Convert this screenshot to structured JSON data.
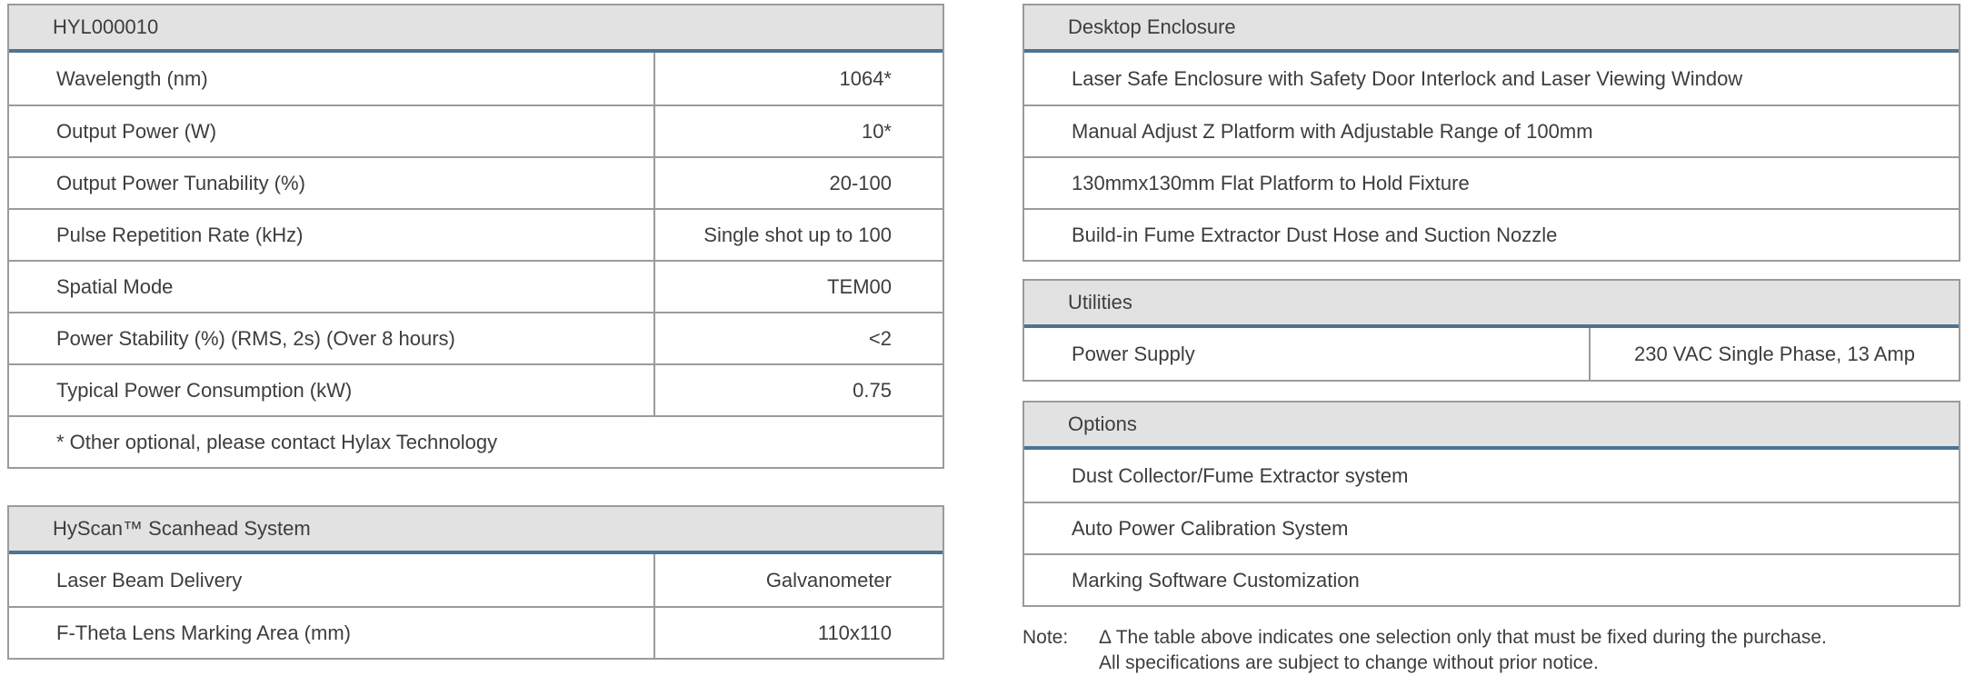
{
  "colors": {
    "accent_blue": "#4d7492",
    "header_bg": "#e2e2e2",
    "border_gray": "#9b9b9b",
    "text": "#3d3d3d"
  },
  "left": {
    "model": {
      "title": "HYL000010",
      "rows": [
        {
          "label": "Wavelength (nm)",
          "value": "1064*"
        },
        {
          "label": "Output Power (W)",
          "value": "10*"
        },
        {
          "label": "Output Power Tunability (%)",
          "value": "20-100"
        },
        {
          "label": "Pulse Repetition Rate (kHz)",
          "value": "Single shot up to 100"
        },
        {
          "label": "Spatial Mode",
          "value": "TEM00"
        },
        {
          "label": "Power Stability (%) (RMS, 2s) (Over 8 hours)",
          "value": "<2"
        },
        {
          "label": "Typical Power Consumption (kW)",
          "value": "0.75"
        }
      ],
      "footnote": "* Other optional, please contact Hylax Technology"
    },
    "scanhead": {
      "title": "HyScan™ Scanhead System",
      "rows": [
        {
          "label": "Laser Beam Delivery",
          "value": "Galvanometer"
        },
        {
          "label": "F-Theta Lens Marking Area (mm)",
          "value": "110x110"
        }
      ]
    }
  },
  "right": {
    "enclosure": {
      "title": "Desktop Enclosure",
      "rows": [
        "Laser Safe Enclosure with Safety Door Interlock and Laser Viewing Window",
        "Manual Adjust Z Platform with Adjustable Range of 100mm",
        "130mmx130mm Flat Platform to Hold Fixture",
        "Build-in Fume Extractor Dust Hose and Suction Nozzle"
      ]
    },
    "utilities": {
      "title": "Utilities",
      "rows": [
        {
          "label": "Power Supply",
          "value": "230 VAC Single Phase, 13 Amp"
        }
      ]
    },
    "options": {
      "title": "Options",
      "rows": [
        "Dust Collector/Fume Extractor system",
        "Auto Power Calibration System",
        "Marking Software Customization"
      ]
    },
    "note": {
      "label": "Note:",
      "lines": [
        "Δ The table above indicates one selection only that must be fixed during the purchase.",
        "All specifications are subject to change without prior notice."
      ]
    }
  }
}
